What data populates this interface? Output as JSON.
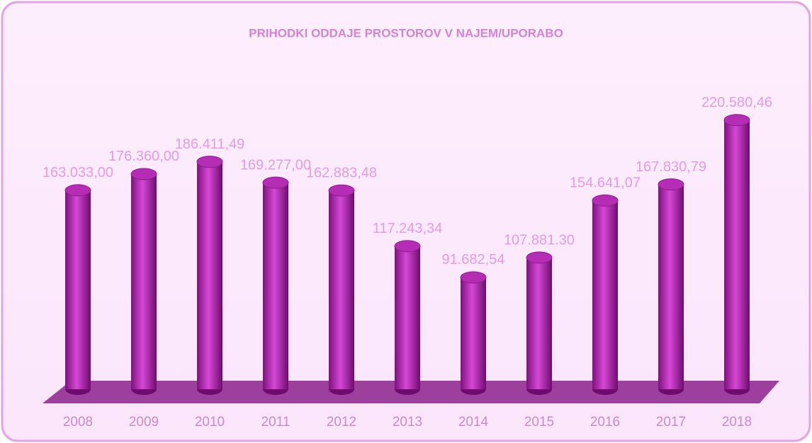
{
  "chart_data": {
    "type": "bar3d",
    "title": "PRIHODKI ODDAJE PROSTOROV V NAJEM/UPORABO",
    "categories": [
      "2008",
      "2009",
      "2010",
      "2011",
      "2012",
      "2013",
      "2014",
      "2015",
      "2016",
      "2017",
      "2018"
    ],
    "values": [
      163033.0,
      176360.0,
      186411.49,
      169277.0,
      162883.48,
      117243.34,
      91682.54,
      107881.3,
      154641.07,
      167830.79,
      220580.46
    ],
    "value_labels": [
      "163.033,00",
      "176.360,00",
      "186.411,49",
      "169.277,00",
      "162.883,48",
      "117.243,34",
      "91.682,54",
      "107.881.30",
      "154.641,07",
      "167.830,79",
      "220.580,46"
    ],
    "color": "#b52db5",
    "ylim": [
      0,
      250000
    ]
  }
}
